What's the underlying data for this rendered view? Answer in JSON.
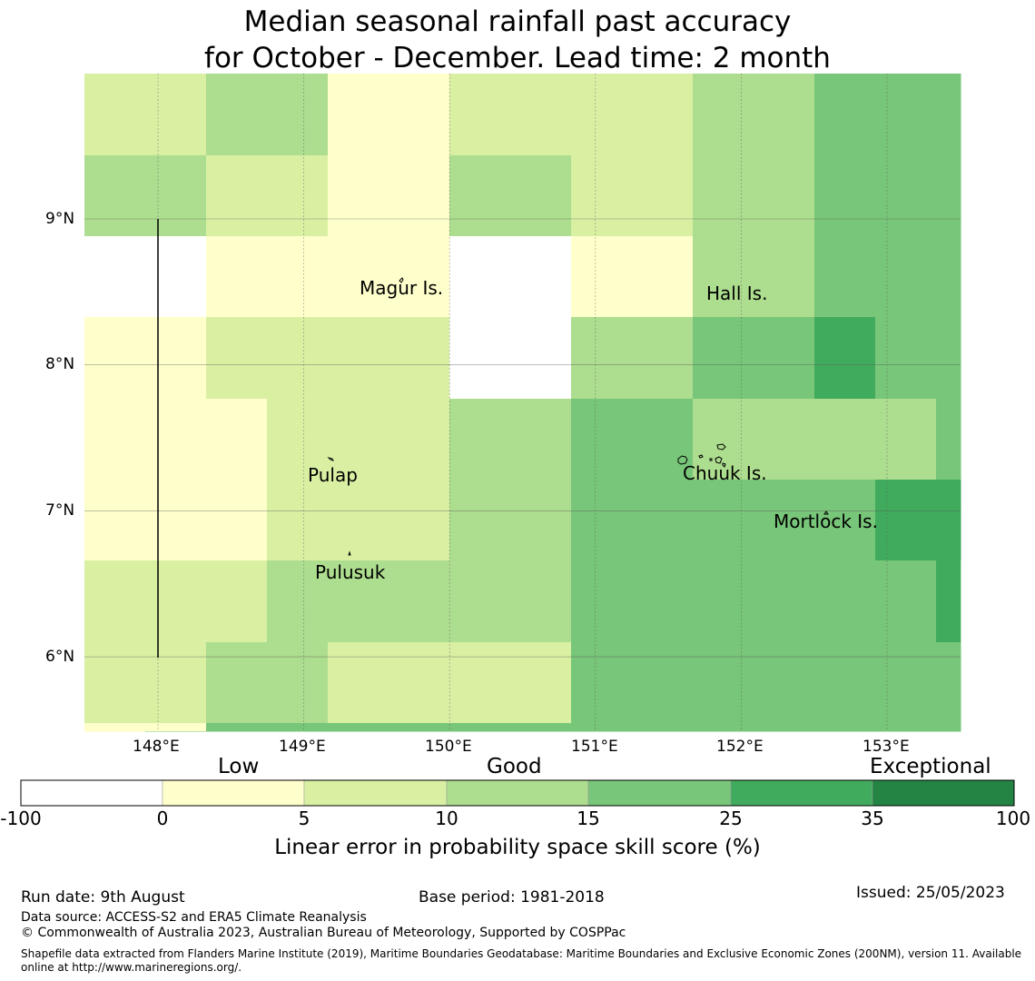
{
  "title": {
    "line1": "Median seasonal rainfall past accuracy",
    "line2": "for October - December. Lead time: 2 month"
  },
  "map": {
    "lon_range": [
      147.5,
      153.5
    ],
    "lat_range": [
      5.5,
      10.0
    ],
    "x_ticks": [
      "148°E",
      "149°E",
      "150°E",
      "151°E",
      "152°E",
      "153°E"
    ],
    "y_ticks": [
      "6°N",
      "7°N",
      "8°N",
      "9°N"
    ],
    "x_tick_values": [
      148,
      149,
      150,
      151,
      152,
      153
    ],
    "y_tick_values": [
      6,
      7,
      8,
      9
    ],
    "islands": [
      {
        "name": "Magur Is.",
        "lon": 149.37,
        "lat": 8.53
      },
      {
        "name": "Hall Is.",
        "lon": 151.75,
        "lat": 8.48
      },
      {
        "name": "Pulap",
        "lon": 149.03,
        "lat": 7.24
      },
      {
        "name": "Chuuk Is.",
        "lon": 151.6,
        "lat": 7.25
      },
      {
        "name": "Mortlock Is.",
        "lon": 152.22,
        "lat": 6.92
      },
      {
        "name": "Pulusuk",
        "lon": 149.08,
        "lat": 6.58
      }
    ]
  },
  "legend": {
    "categories": [
      {
        "label": "Low"
      },
      {
        "label": "Good"
      },
      {
        "label": "Exceptional"
      }
    ],
    "ticks": [
      "-100",
      "0",
      "5",
      "10",
      "15",
      "25",
      "35",
      "100"
    ],
    "colors": [
      "#ffffff",
      "#ffffcc",
      "#d9f0a3",
      "#addd8e",
      "#78c679",
      "#41ab5d",
      "#238443"
    ],
    "title": "Linear error in probability space skill score (%)"
  },
  "footer": {
    "run_date": "Run date: 9th August",
    "base_period": "Base period: 1981-2018",
    "issued": "Issued: 25/05/2023",
    "data_source": "Data source: ACCESS-S2 and ERA5 Climate Reanalysis",
    "copyright": "© Commonwealth of Australia 2023, Australian Bureau of Meteorology, Supported by COSPPac",
    "shapefile": "Shapefile data extracted from Flanders Marine Institute (2019), Maritime Boundaries Geodatabase: Maritime Boundaries and Exclusive Economic Zones (200NM), version 11. Available online at http://www.marineregions.org/."
  }
}
